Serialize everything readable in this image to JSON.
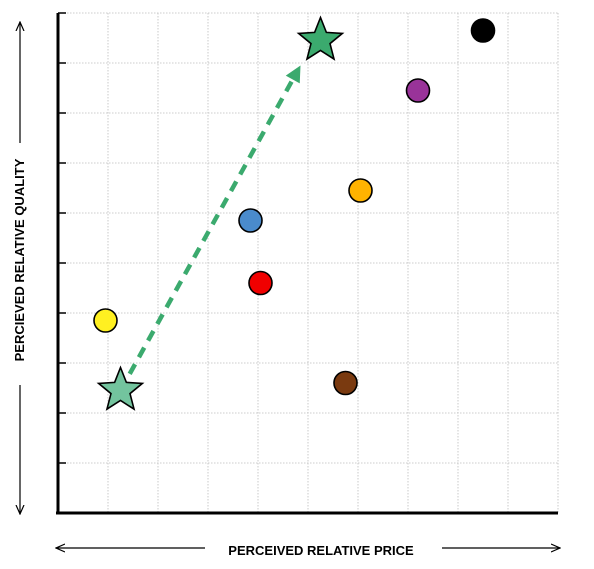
{
  "chart_data": {
    "type": "scatter",
    "title": "",
    "xlabel": "PERCEIVED RELATIVE PRICE",
    "ylabel": "PERCIEVED RELATIVE QUALITY",
    "xlim": [
      0,
      10
    ],
    "ylim": [
      0,
      10
    ],
    "grid": true,
    "points": [
      {
        "x": 0.95,
        "y": 3.85,
        "color": "#FFF021",
        "marker": "circle"
      },
      {
        "x": 3.85,
        "y": 5.85,
        "color": "#4A8BCC",
        "marker": "circle"
      },
      {
        "x": 4.05,
        "y": 4.6,
        "color": "#F00000",
        "marker": "circle"
      },
      {
        "x": 6.05,
        "y": 6.45,
        "color": "#FFB300",
        "marker": "circle"
      },
      {
        "x": 5.75,
        "y": 2.6,
        "color": "#7A3A10",
        "marker": "circle"
      },
      {
        "x": 7.2,
        "y": 8.45,
        "color": "#993399",
        "marker": "circle"
      },
      {
        "x": 8.5,
        "y": 9.65,
        "color": "#000000",
        "marker": "circle"
      }
    ],
    "stars": [
      {
        "x": 1.25,
        "y": 2.45,
        "color": "#73C49E",
        "role": "start"
      },
      {
        "x": 5.25,
        "y": 9.45,
        "color": "#3BAA6E",
        "role": "end"
      }
    ],
    "arrow": {
      "from": [
        1.25,
        2.45
      ],
      "to": [
        4.85,
        8.95
      ],
      "color": "#3BAA6E",
      "style": "dashed"
    }
  }
}
